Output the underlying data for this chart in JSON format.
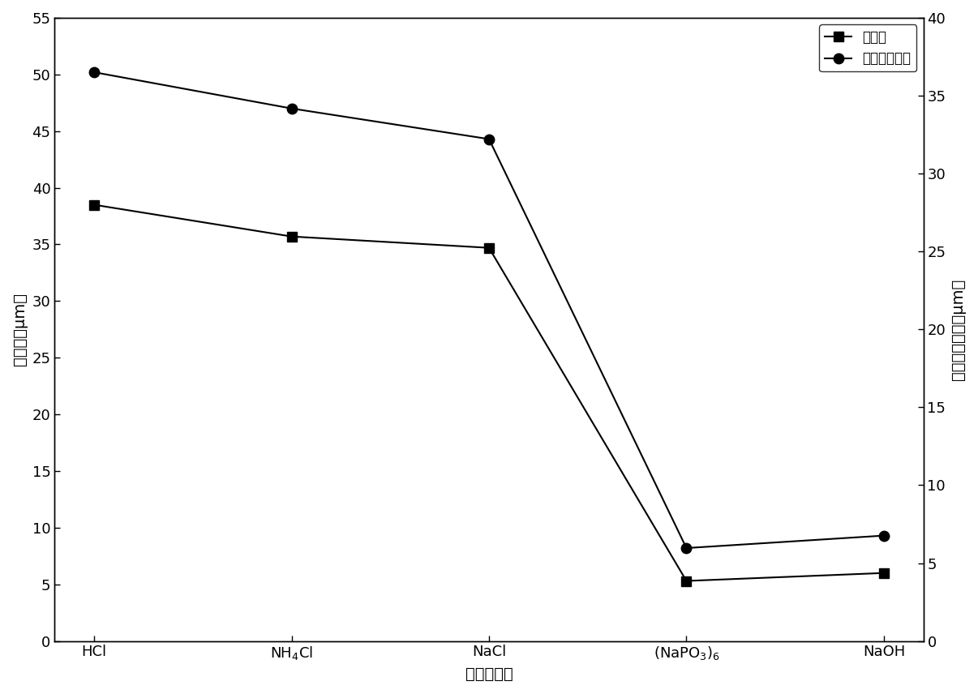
{
  "x_positions": [
    0,
    1,
    2,
    3,
    4
  ],
  "median_diameter": [
    38.5,
    35.7,
    34.7,
    5.3,
    6.0
  ],
  "volume_mean_diameter": [
    50.2,
    47.0,
    44.3,
    8.2,
    9.3
  ],
  "left_ylim": [
    0,
    55
  ],
  "right_ylim": [
    0,
    40
  ],
  "left_yticks": [
    0,
    5,
    10,
    15,
    20,
    25,
    30,
    35,
    40,
    45,
    50,
    55
  ],
  "right_yticks": [
    0,
    5,
    10,
    15,
    20,
    25,
    30,
    35,
    40
  ],
  "left_ylabel": "中位径（μm）",
  "right_ylabel": "体积平均粒径（μm）",
  "xlabel": "化学分散剂",
  "legend_median": "中位径",
  "legend_volume": "体积平均粒径",
  "line_color": "#000000",
  "markersize": 9,
  "linewidth": 1.5,
  "figure_width": 12.06,
  "figure_height": 8.56,
  "dpi": 100
}
